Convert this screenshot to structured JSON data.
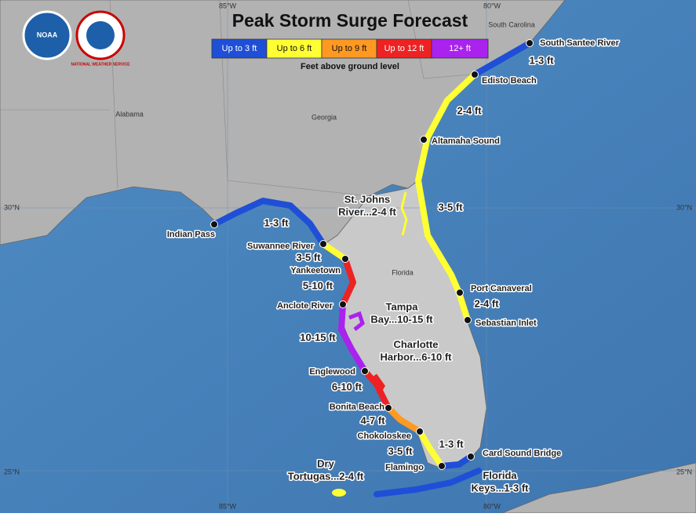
{
  "header": {
    "title": "Peak Storm Surge Forecast",
    "logos": [
      "NOAA",
      "NATIONAL WEATHER SERVICE"
    ]
  },
  "legend": {
    "items": [
      {
        "label": "Up to 3 ft",
        "color": "#1f4fd6"
      },
      {
        "label": "Up to 6 ft",
        "color": "#ffff33"
      },
      {
        "label": "Up to 9 ft",
        "color": "#ff9922"
      },
      {
        "label": "Up to 12 ft",
        "color": "#ee2222"
      },
      {
        "label": "12+ ft",
        "color": "#aa22ee"
      }
    ],
    "note": "Feet above ground level"
  },
  "graticule": [
    "85°W",
    "80°W",
    "30°N",
    "25°N"
  ],
  "states": [
    "South Carolina",
    "Alabama",
    "Georgia",
    "Florida"
  ],
  "points": [
    "South Santee River",
    "Edisto Beach",
    "Altamaha Sound",
    "Port Canaveral",
    "Sebastian Inlet",
    "Card Sound Bridge",
    "Flamingo",
    "Chokoloskee",
    "Bonita Beach",
    "Englewood",
    "Anclote River",
    "Yankeetown",
    "Suwannee River",
    "Indian Pass"
  ],
  "segments": [
    "1-3 ft",
    "2-4 ft",
    "3-5 ft",
    "2-4 ft",
    "1-3 ft",
    "3-5 ft",
    "4-7 ft",
    "6-10 ft",
    "10-15 ft",
    "5-10 ft",
    "3-5 ft",
    "1-3 ft"
  ],
  "areas": [
    {
      "lines": [
        "St. Johns",
        "River...2-4 ft"
      ]
    },
    {
      "lines": [
        "Tampa",
        "Bay...10-15 ft"
      ]
    },
    {
      "lines": [
        "Charlotte",
        "Harbor...6-10 ft"
      ]
    },
    {
      "lines": [
        "Dry",
        "Tortugas...2-4 ft"
      ]
    },
    {
      "lines": [
        "Florida",
        "Keys...1-3 ft"
      ]
    }
  ]
}
